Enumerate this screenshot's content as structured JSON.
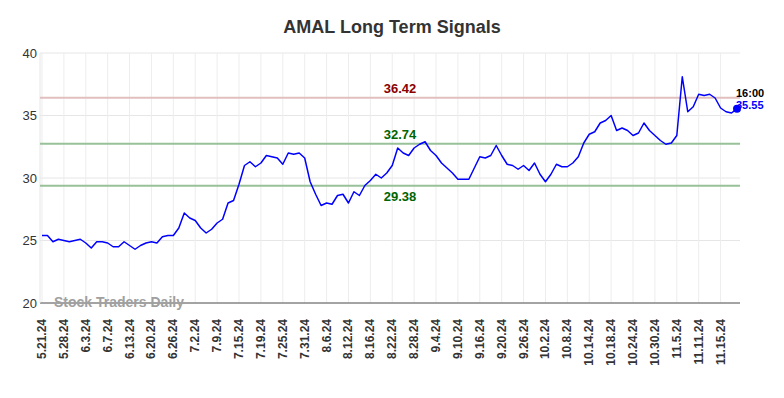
{
  "chart_data": {
    "type": "line",
    "title": "AMAL Long Term Signals",
    "watermark": "Stock Traders Daily",
    "categories": [
      "5.21.24",
      null,
      null,
      null,
      "5.28.24",
      null,
      null,
      null,
      "6.3.24",
      null,
      null,
      null,
      "6.7.24",
      null,
      null,
      null,
      "6.13.24",
      null,
      null,
      null,
      "6.20.24",
      null,
      null,
      null,
      "6.26.24",
      null,
      null,
      null,
      "7.2.24",
      null,
      null,
      null,
      "7.9.24",
      null,
      null,
      null,
      "7.15.24",
      null,
      null,
      null,
      "7.19.24",
      null,
      null,
      null,
      "7.25.24",
      null,
      null,
      null,
      "7.31.24",
      null,
      null,
      null,
      "8.6.24",
      null,
      null,
      null,
      "8.12.24",
      null,
      null,
      null,
      "8.16.24",
      null,
      null,
      null,
      "8.22.24",
      null,
      null,
      null,
      "8.28.24",
      null,
      null,
      null,
      "9.4.24",
      null,
      null,
      null,
      "9.10.24",
      null,
      null,
      null,
      "9.16.24",
      null,
      null,
      null,
      "9.20.24",
      null,
      null,
      null,
      "9.26.24",
      null,
      null,
      null,
      "10.2.24",
      null,
      null,
      null,
      "10.8.24",
      null,
      null,
      null,
      "10.14.24",
      null,
      null,
      null,
      "10.18.24",
      null,
      null,
      null,
      "10.24.24",
      null,
      null,
      null,
      "10.30.24",
      null,
      null,
      null,
      "11.5.24",
      null,
      null,
      null,
      "11.11.24",
      null,
      null,
      null,
      "11.15.24",
      null,
      null,
      null
    ],
    "values": [
      25.4,
      25.4,
      24.9,
      25.1,
      25.0,
      24.9,
      25.0,
      25.1,
      24.8,
      24.4,
      24.9,
      24.9,
      24.8,
      24.5,
      24.5,
      24.9,
      24.6,
      24.3,
      24.6,
      24.8,
      24.9,
      24.8,
      25.3,
      25.4,
      25.4,
      26.0,
      27.2,
      26.8,
      26.6,
      26.0,
      25.6,
      25.9,
      26.4,
      26.7,
      28.0,
      28.2,
      29.5,
      31.0,
      31.3,
      30.9,
      31.2,
      31.8,
      31.7,
      31.6,
      31.1,
      32.0,
      31.9,
      32.0,
      31.6,
      29.7,
      28.7,
      27.8,
      28.0,
      27.9,
      28.6,
      28.7,
      28.0,
      28.9,
      28.6,
      29.4,
      29.8,
      30.3,
      30.0,
      30.4,
      31.0,
      32.4,
      32.0,
      31.8,
      32.4,
      32.7,
      32.9,
      32.2,
      31.8,
      31.2,
      30.8,
      30.4,
      29.9,
      29.9,
      29.9,
      30.8,
      31.7,
      31.6,
      31.8,
      32.6,
      31.8,
      31.1,
      31.0,
      30.7,
      31.0,
      30.6,
      31.2,
      30.3,
      29.7,
      30.3,
      31.1,
      30.9,
      30.9,
      31.2,
      31.7,
      32.8,
      33.5,
      33.7,
      34.4,
      34.6,
      35.0,
      33.8,
      34.0,
      33.8,
      33.4,
      33.6,
      34.4,
      33.8,
      33.4,
      33.0,
      32.7,
      32.8,
      33.4,
      38.1,
      35.3,
      35.7,
      36.7,
      36.6,
      36.7,
      36.4,
      35.6,
      35.3,
      35.2,
      35.55
    ],
    "color": "#0000ff",
    "last_time": "16:00",
    "reference_lines": [
      {
        "value": 36.42,
        "color": "#8b0000"
      },
      {
        "value": 32.74,
        "color": "#006400"
      },
      {
        "value": 29.38,
        "color": "#006400"
      }
    ],
    "ylim": [
      20,
      40
    ],
    "yticks": [
      20,
      25,
      30,
      35,
      40
    ],
    "grid": true
  }
}
